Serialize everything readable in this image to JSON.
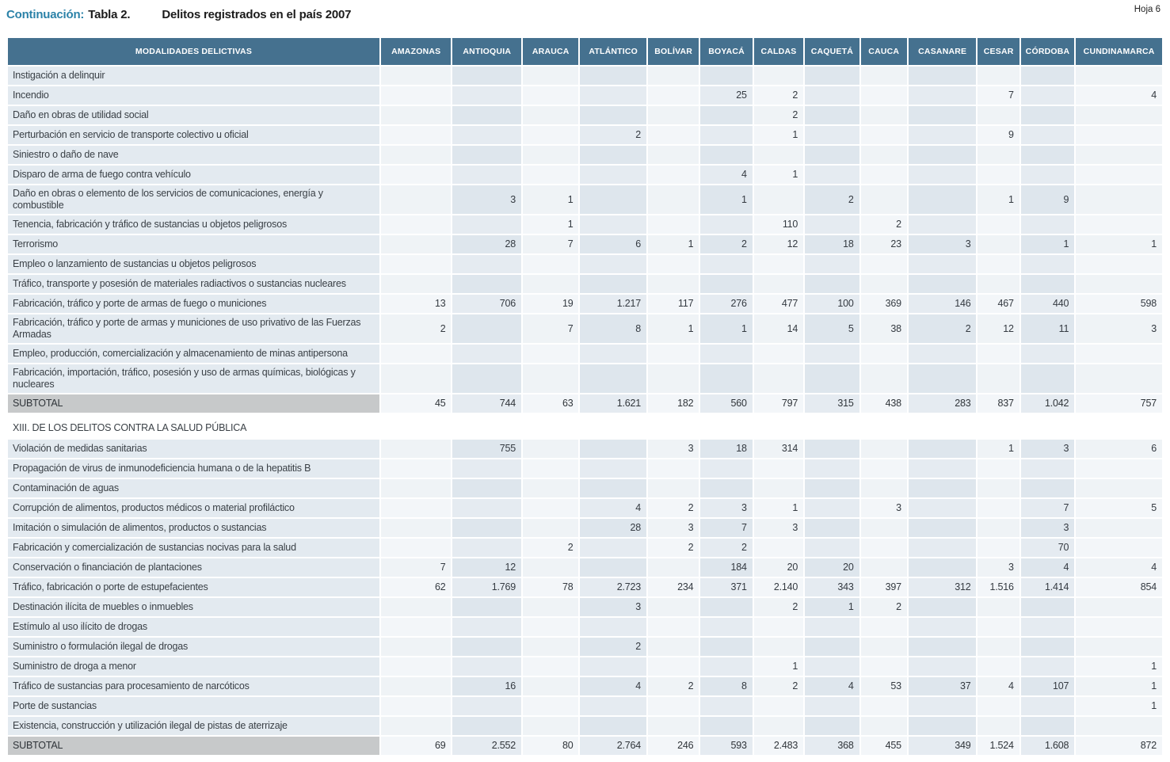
{
  "page": {
    "continuation_label": "Continuación:",
    "table_label": "Tabla 2.",
    "title": "Delitos registrados en el país 2007",
    "sheet": "Hoja 6"
  },
  "colors": {
    "header_bg": "#45718f",
    "continuation_accent": "#2b82a8",
    "label_cell_bg": "#e3eaf0",
    "column_light": "#eff3f6",
    "column_dark": "#dee6ed",
    "subtotal_bg": "#c7c9ca"
  },
  "table": {
    "first_column_header": "MODALIDADES DELICTIVAS",
    "columns": [
      "AMAZONAS",
      "ANTIOQUIA",
      "ARAUCA",
      "ATLÁNTICO",
      "BOLÍVAR",
      "BOYACÁ",
      "CALDAS",
      "CAQUETÁ",
      "CAUCA",
      "CASANARE",
      "CESAR",
      "CÓRDOBA",
      "CUNDINAMARCA"
    ],
    "rows": [
      {
        "type": "data",
        "label": "Instigación a delinquir",
        "values": [
          "",
          "",
          "",
          "",
          "",
          "",
          "",
          "",
          "",
          "",
          "",
          "",
          ""
        ]
      },
      {
        "type": "data",
        "label": "Incendio",
        "values": [
          "",
          "",
          "",
          "",
          "",
          "25",
          "2",
          "",
          "",
          "",
          "7",
          "",
          "4"
        ]
      },
      {
        "type": "data",
        "label": "Daño en obras de utilidad social",
        "values": [
          "",
          "",
          "",
          "",
          "",
          "",
          "2",
          "",
          "",
          "",
          "",
          "",
          ""
        ]
      },
      {
        "type": "data",
        "label": "Perturbación en servicio de transporte colectivo u oficial",
        "values": [
          "",
          "",
          "",
          "2",
          "",
          "",
          "1",
          "",
          "",
          "",
          "9",
          "",
          ""
        ]
      },
      {
        "type": "data",
        "label": "Siniestro o daño de nave",
        "values": [
          "",
          "",
          "",
          "",
          "",
          "",
          "",
          "",
          "",
          "",
          "",
          "",
          ""
        ]
      },
      {
        "type": "data",
        "label": "Disparo de arma de fuego contra vehículo",
        "values": [
          "",
          "",
          "",
          "",
          "",
          "4",
          "1",
          "",
          "",
          "",
          "",
          "",
          ""
        ]
      },
      {
        "type": "data",
        "label": "Daño en obras o elemento de los servicios de comunicaciones, energía y combustible",
        "values": [
          "",
          "3",
          "1",
          "",
          "",
          "1",
          "",
          "2",
          "",
          "",
          "1",
          "9",
          ""
        ]
      },
      {
        "type": "data",
        "label": "Tenencia, fabricación y tráfico de sustancias u objetos peligrosos",
        "values": [
          "",
          "",
          "1",
          "",
          "",
          "",
          "110",
          "",
          "2",
          "",
          "",
          "",
          ""
        ]
      },
      {
        "type": "data",
        "label": "Terrorismo",
        "values": [
          "",
          "28",
          "7",
          "6",
          "1",
          "2",
          "12",
          "18",
          "23",
          "3",
          "",
          "1",
          "1"
        ]
      },
      {
        "type": "data",
        "label": "Empleo o lanzamiento de sustancias u objetos peligrosos",
        "values": [
          "",
          "",
          "",
          "",
          "",
          "",
          "",
          "",
          "",
          "",
          "",
          "",
          ""
        ]
      },
      {
        "type": "data",
        "label": "Tráfico, transporte y posesión de materiales radiactivos o sustancias nucleares",
        "values": [
          "",
          "",
          "",
          "",
          "",
          "",
          "",
          "",
          "",
          "",
          "",
          "",
          ""
        ]
      },
      {
        "type": "data",
        "label": "Fabricación, tráfico y porte de armas de fuego o municiones",
        "values": [
          "13",
          "706",
          "19",
          "1.217",
          "117",
          "276",
          "477",
          "100",
          "369",
          "146",
          "467",
          "440",
          "598"
        ]
      },
      {
        "type": "data",
        "label": "Fabricación, tráfico y porte de armas y municiones de uso privativo de las Fuerzas Armadas",
        "values": [
          "2",
          "",
          "7",
          "8",
          "1",
          "1",
          "14",
          "5",
          "38",
          "2",
          "12",
          "11",
          "3"
        ]
      },
      {
        "type": "data",
        "label": "Empleo, producción, comercialización y almacenamiento de minas antipersona",
        "values": [
          "",
          "",
          "",
          "",
          "",
          "",
          "",
          "",
          "",
          "",
          "",
          "",
          ""
        ]
      },
      {
        "type": "data",
        "label": "Fabricación, importación, tráfico, posesión y uso de armas químicas, biológicas y nucleares",
        "values": [
          "",
          "",
          "",
          "",
          "",
          "",
          "",
          "",
          "",
          "",
          "",
          "",
          ""
        ]
      },
      {
        "type": "subtotal",
        "label": "SUBTOTAL",
        "values": [
          "45",
          "744",
          "63",
          "1.621",
          "182",
          "560",
          "797",
          "315",
          "438",
          "283",
          "837",
          "1.042",
          "757"
        ]
      },
      {
        "type": "section",
        "label": "XIII. DE LOS DELITOS CONTRA LA SALUD PÚBLICA"
      },
      {
        "type": "data",
        "label": "Violación de medidas sanitarias",
        "values": [
          "",
          "755",
          "",
          "",
          "3",
          "18",
          "314",
          "",
          "",
          "",
          "1",
          "3",
          "6"
        ]
      },
      {
        "type": "data",
        "label": "Propagación de virus de inmunodeficiencia humana o de la hepatitis B",
        "values": [
          "",
          "",
          "",
          "",
          "",
          "",
          "",
          "",
          "",
          "",
          "",
          "",
          ""
        ]
      },
      {
        "type": "data",
        "label": "Contaminación de aguas",
        "values": [
          "",
          "",
          "",
          "",
          "",
          "",
          "",
          "",
          "",
          "",
          "",
          "",
          ""
        ]
      },
      {
        "type": "data",
        "label": "Corrupción de alimentos, productos médicos o material profiláctico",
        "values": [
          "",
          "",
          "",
          "4",
          "2",
          "3",
          "1",
          "",
          "3",
          "",
          "",
          "7",
          "5"
        ]
      },
      {
        "type": "data",
        "label": "Imitación o simulación de alimentos, productos o sustancias",
        "values": [
          "",
          "",
          "",
          "28",
          "3",
          "7",
          "3",
          "",
          "",
          "",
          "",
          "3",
          ""
        ]
      },
      {
        "type": "data",
        "label": "Fabricación y comercialización de sustancias nocivas para la salud",
        "values": [
          "",
          "",
          "2",
          "",
          "2",
          "2",
          "",
          "",
          "",
          "",
          "",
          "70",
          ""
        ]
      },
      {
        "type": "data",
        "label": "Conservación o financiación de plantaciones",
        "values": [
          "7",
          "12",
          "",
          "",
          "",
          "184",
          "20",
          "20",
          "",
          "",
          "3",
          "4",
          "4"
        ]
      },
      {
        "type": "data",
        "label": "Tráfico, fabricación o porte de estupefacientes",
        "values": [
          "62",
          "1.769",
          "78",
          "2.723",
          "234",
          "371",
          "2.140",
          "343",
          "397",
          "312",
          "1.516",
          "1.414",
          "854"
        ]
      },
      {
        "type": "data",
        "label": "Destinación ilícita de muebles o inmuebles",
        "values": [
          "",
          "",
          "",
          "3",
          "",
          "",
          "2",
          "1",
          "2",
          "",
          "",
          "",
          ""
        ]
      },
      {
        "type": "data",
        "label": "Estímulo al uso ilícito de drogas",
        "values": [
          "",
          "",
          "",
          "",
          "",
          "",
          "",
          "",
          "",
          "",
          "",
          "",
          ""
        ]
      },
      {
        "type": "data",
        "label": "Suministro o formulación ilegal de drogas",
        "values": [
          "",
          "",
          "",
          "2",
          "",
          "",
          "",
          "",
          "",
          "",
          "",
          "",
          ""
        ]
      },
      {
        "type": "data",
        "label": "Suministro de droga a menor",
        "values": [
          "",
          "",
          "",
          "",
          "",
          "",
          "1",
          "",
          "",
          "",
          "",
          "",
          "1"
        ]
      },
      {
        "type": "data",
        "label": "Tráfico de sustancias para procesamiento de narcóticos",
        "values": [
          "",
          "16",
          "",
          "4",
          "2",
          "8",
          "2",
          "4",
          "53",
          "37",
          "4",
          "107",
          "1"
        ]
      },
      {
        "type": "data",
        "label": "Porte de sustancias",
        "values": [
          "",
          "",
          "",
          "",
          "",
          "",
          "",
          "",
          "",
          "",
          "",
          "",
          "1"
        ]
      },
      {
        "type": "data",
        "label": "Existencia, construcción y utilización ilegal de pistas de aterrizaje",
        "values": [
          "",
          "",
          "",
          "",
          "",
          "",
          "",
          "",
          "",
          "",
          "",
          "",
          ""
        ]
      },
      {
        "type": "subtotal",
        "label": "SUBTOTAL",
        "values": [
          "69",
          "2.552",
          "80",
          "2.764",
          "246",
          "593",
          "2.483",
          "368",
          "455",
          "349",
          "1.524",
          "1.608",
          "872"
        ]
      }
    ]
  }
}
